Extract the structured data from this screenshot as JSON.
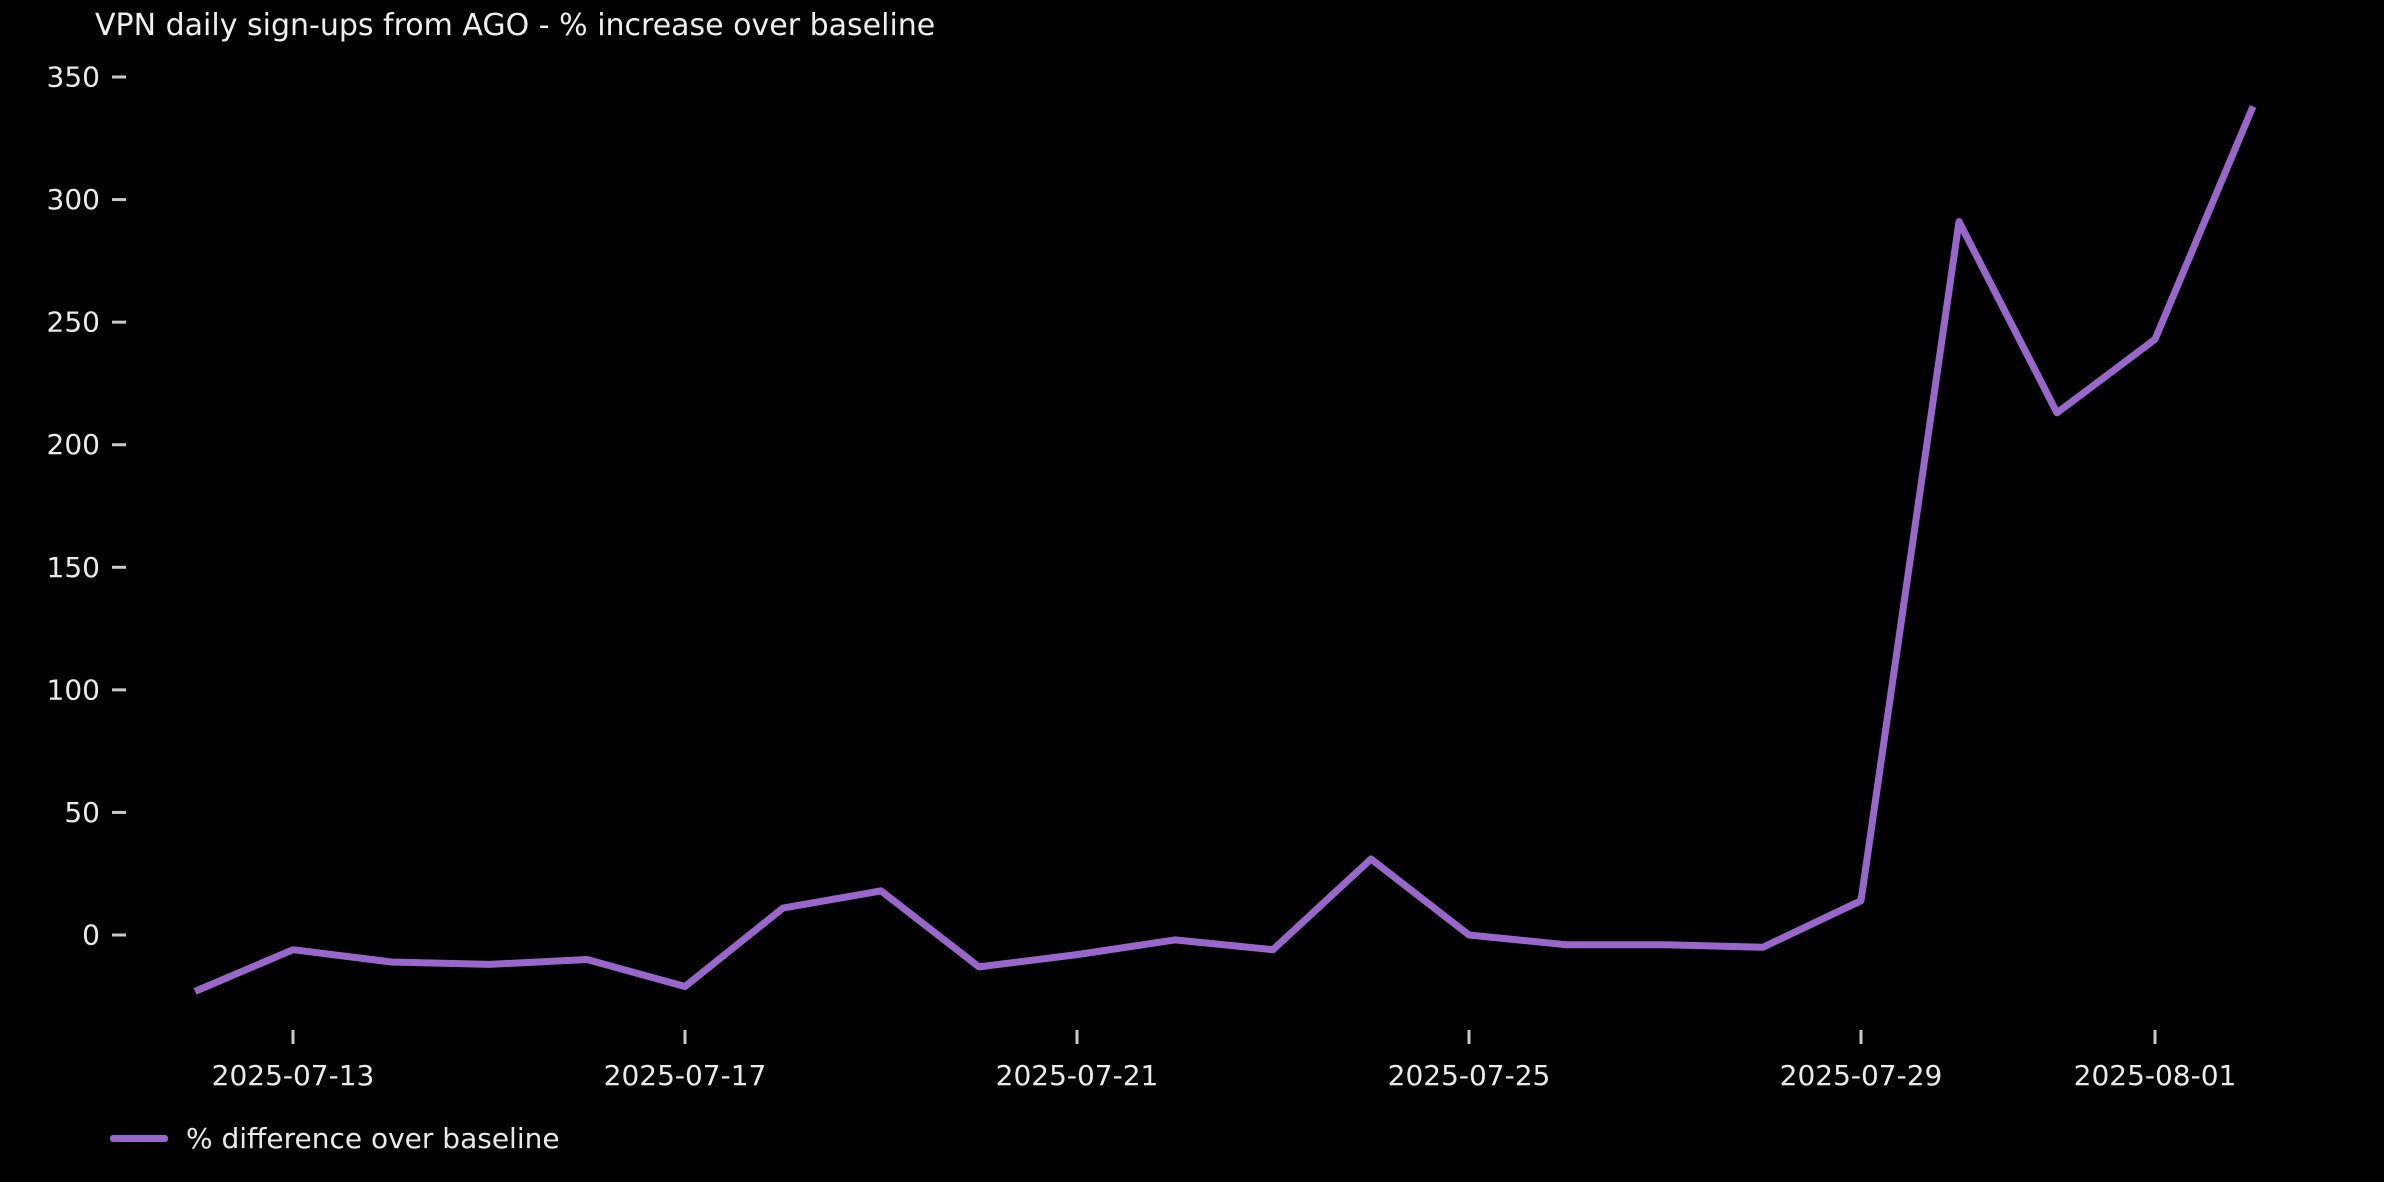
{
  "chart": {
    "title": "VPN daily sign-ups from AGO - % increase over baseline",
    "legend": {
      "label": "% difference over baseline"
    }
  },
  "chart_data": {
    "type": "line",
    "title": "VPN daily sign-ups from AGO - % increase over baseline",
    "x": [
      "2025-07-12",
      "2025-07-13",
      "2025-07-14",
      "2025-07-15",
      "2025-07-16",
      "2025-07-17",
      "2025-07-18",
      "2025-07-19",
      "2025-07-20",
      "2025-07-21",
      "2025-07-22",
      "2025-07-23",
      "2025-07-24",
      "2025-07-25",
      "2025-07-26",
      "2025-07-27",
      "2025-07-28",
      "2025-07-29",
      "2025-07-30",
      "2025-07-31",
      "2025-08-01",
      "2025-08-02"
    ],
    "series": [
      {
        "name": "% difference over baseline",
        "values": [
          -23,
          -6,
          -11,
          -12,
          -10,
          -21,
          11,
          18,
          -13,
          -8,
          -2,
          -6,
          31,
          0,
          -4,
          -4,
          -5,
          14,
          291,
          213,
          243,
          338
        ]
      }
    ],
    "xlabel": "",
    "ylabel": "",
    "yticks": [
      0,
      50,
      100,
      150,
      200,
      250,
      300,
      350
    ],
    "xticks": [
      "2025-07-13",
      "2025-07-17",
      "2025-07-21",
      "2025-07-25",
      "2025-07-29",
      "2025-08-01"
    ],
    "ylim": [
      -45,
      355
    ],
    "grid": false,
    "legend_position": "lower left below axis",
    "colors": {
      "line": "#9966cc",
      "background": "#000000",
      "text": "#eaeaea",
      "tick": "#c9c9c9"
    }
  }
}
